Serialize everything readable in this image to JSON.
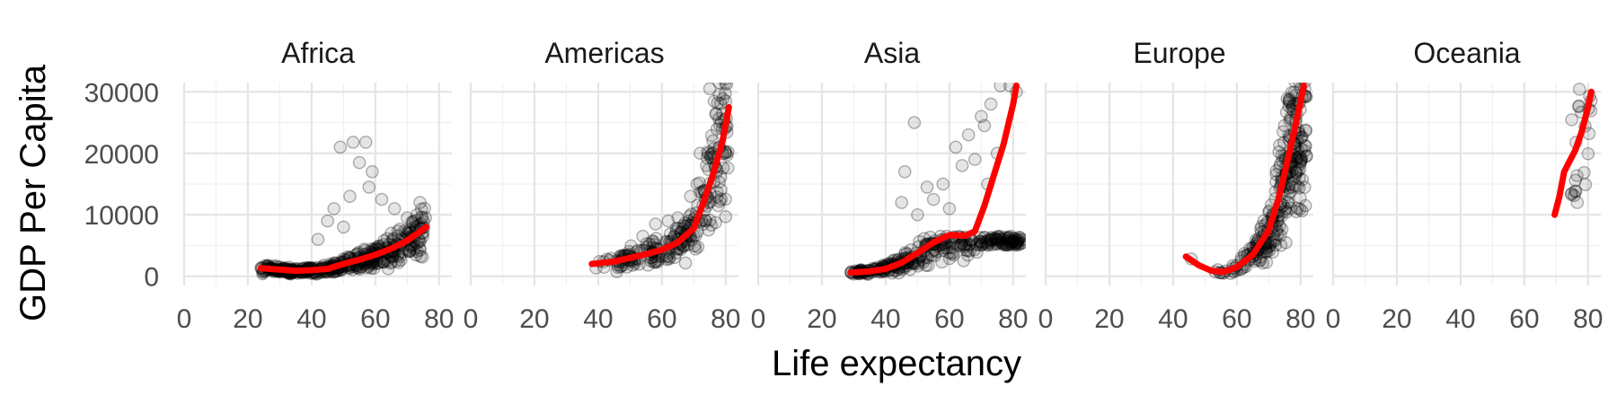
{
  "chart_data": {
    "type": "scatter",
    "xlabel": "Life expectancy",
    "ylabel": "GDP Per Capita",
    "xlim": [
      0,
      84
    ],
    "ylim": [
      -1500,
      31500
    ],
    "x_ticks": [
      0,
      20,
      40,
      60,
      80
    ],
    "y_ticks": [
      0,
      10000,
      20000,
      30000
    ],
    "y_tick_labels": [
      "0",
      "10000",
      "20000",
      "30000"
    ],
    "grid": true,
    "point_style": "open circles, semi-transparent black",
    "smooth_color": "#ff0000",
    "facets": [
      {
        "label": "Africa",
        "x_range": [
          24,
          76
        ],
        "smooth": [
          [
            24,
            1300
          ],
          [
            30,
            1100
          ],
          [
            35,
            900
          ],
          [
            40,
            1000
          ],
          [
            45,
            1200
          ],
          [
            50,
            2000
          ],
          [
            55,
            2700
          ],
          [
            60,
            3500
          ],
          [
            65,
            4500
          ],
          [
            70,
            5800
          ],
          [
            76,
            8000
          ]
        ],
        "highlights": [
          [
            49,
            21000
          ],
          [
            53,
            21800
          ],
          [
            57,
            21800
          ],
          [
            55,
            18500
          ],
          [
            59,
            17000
          ],
          [
            52,
            13000
          ],
          [
            58,
            14500
          ],
          [
            62,
            12500
          ],
          [
            47,
            11000
          ],
          [
            45,
            9000
          ],
          [
            50,
            8000
          ],
          [
            65,
            7000
          ],
          [
            70,
            9500
          ],
          [
            74,
            12000
          ],
          [
            73,
            10000
          ],
          [
            42,
            6000
          ],
          [
            66,
            11000
          ]
        ]
      },
      {
        "label": "Americas",
        "x_range": [
          38,
          81
        ],
        "smooth": [
          [
            38,
            2000
          ],
          [
            45,
            2400
          ],
          [
            50,
            3000
          ],
          [
            55,
            3600
          ],
          [
            60,
            4300
          ],
          [
            65,
            5500
          ],
          [
            70,
            7800
          ],
          [
            73,
            12000
          ],
          [
            76,
            16500
          ],
          [
            79,
            22000
          ],
          [
            81,
            27500
          ]
        ],
        "highlights": [
          [
            75,
            30500
          ],
          [
            78,
            29500
          ],
          [
            80,
            28500
          ],
          [
            77,
            26500
          ],
          [
            79,
            24000
          ],
          [
            76,
            22000
          ],
          [
            72,
            20000
          ],
          [
            74,
            18000
          ],
          [
            69,
            13000
          ],
          [
            71,
            15000
          ],
          [
            65,
            9500
          ],
          [
            58,
            8500
          ],
          [
            54,
            6500
          ],
          [
            62,
            9000
          ]
        ]
      },
      {
        "label": "Asia",
        "x_range": [
          29,
          83
        ],
        "smooth": [
          [
            29,
            600
          ],
          [
            35,
            800
          ],
          [
            40,
            1200
          ],
          [
            45,
            2200
          ],
          [
            50,
            3800
          ],
          [
            55,
            5500
          ],
          [
            60,
            6700
          ],
          [
            65,
            6600
          ],
          [
            68,
            7300
          ],
          [
            71,
            11500
          ],
          [
            74,
            16500
          ],
          [
            77,
            21500
          ],
          [
            80,
            28000
          ],
          [
            81,
            31000
          ]
        ],
        "highlights": [
          [
            49,
            25000
          ],
          [
            46,
            17000
          ],
          [
            53,
            14500
          ],
          [
            58,
            15000
          ],
          [
            55,
            12500
          ],
          [
            62,
            21000
          ],
          [
            66,
            23000
          ],
          [
            68,
            19000
          ],
          [
            70,
            26000
          ],
          [
            73,
            28000
          ],
          [
            76,
            31000
          ],
          [
            79,
            31000
          ],
          [
            81,
            30000
          ],
          [
            75,
            20000
          ],
          [
            72,
            15000
          ],
          [
            64,
            18000
          ],
          [
            60,
            11000
          ],
          [
            50,
            10000
          ],
          [
            45,
            12000
          ],
          [
            71,
            24500
          ]
        ]
      },
      {
        "label": "Europe",
        "x_range": [
          43,
          82
        ],
        "smooth": [
          [
            44,
            3200
          ],
          [
            48,
            1800
          ],
          [
            52,
            900
          ],
          [
            56,
            700
          ],
          [
            60,
            1500
          ],
          [
            65,
            3500
          ],
          [
            70,
            7500
          ],
          [
            73,
            12500
          ],
          [
            76,
            19000
          ],
          [
            79,
            26000
          ],
          [
            81,
            31000
          ]
        ],
        "highlights": []
      },
      {
        "label": "Oceania",
        "x_range": [
          69,
          81
        ],
        "smooth": [
          [
            69.5,
            10000
          ],
          [
            71,
            13000
          ],
          [
            72.5,
            17000
          ],
          [
            74,
            18500
          ],
          [
            76,
            20500
          ],
          [
            78,
            23500
          ],
          [
            80,
            27500
          ],
          [
            81,
            30000
          ]
        ],
        "highlights": []
      }
    ]
  }
}
